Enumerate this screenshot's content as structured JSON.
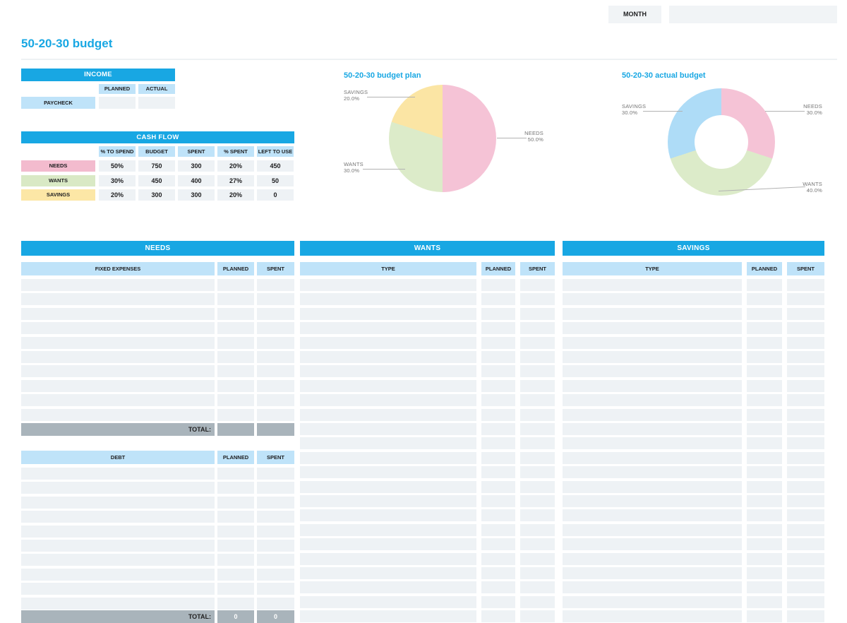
{
  "page": {
    "title": "50-20-30 budget",
    "accent_color": "#18a7e3"
  },
  "month": {
    "label": "MONTH",
    "value": ""
  },
  "income": {
    "header": "INCOME",
    "columns": [
      "PLANNED",
      "ACTUAL"
    ],
    "rows": [
      {
        "label": "PAYCHECK",
        "planned": "",
        "actual": ""
      }
    ]
  },
  "cash_flow": {
    "header": "CASH FLOW",
    "columns": [
      "% TO SPEND",
      "BUDGET",
      "SPENT",
      "% SPENT",
      "LEFT TO USE"
    ],
    "rows": [
      {
        "label": "NEEDS",
        "color": "#f3bbce",
        "values": [
          "50%",
          "750",
          "300",
          "20%",
          "450"
        ]
      },
      {
        "label": "WANTS",
        "color": "#d9e9c5",
        "values": [
          "30%",
          "450",
          "400",
          "27%",
          "50"
        ]
      },
      {
        "label": "SAVINGS",
        "color": "#fce7a6",
        "values": [
          "20%",
          "300",
          "300",
          "20%",
          "0"
        ]
      }
    ]
  },
  "chart_data": [
    {
      "type": "pie",
      "title": "50-20-30 budget plan",
      "labels": [
        "NEEDS",
        "WANTS",
        "SAVINGS"
      ],
      "values": [
        50.0,
        30.0,
        20.0
      ],
      "colors": [
        "#f5c3d6",
        "#dcebc9",
        "#fbe5a4"
      ],
      "legend": "none",
      "callouts": [
        {
          "name": "NEEDS",
          "pct": "50.0%"
        },
        {
          "name": "WANTS",
          "pct": "30.0%"
        },
        {
          "name": "SAVINGS",
          "pct": "20.0%"
        }
      ]
    },
    {
      "type": "donut",
      "title": "50-20-30 actual budget",
      "labels": [
        "NEEDS",
        "WANTS",
        "SAVINGS"
      ],
      "values": [
        30.0,
        40.0,
        30.0
      ],
      "colors": [
        "#f5c3d6",
        "#dcebc9",
        "#aedcf7"
      ],
      "legend": "none",
      "callouts": [
        {
          "name": "NEEDS",
          "pct": "30.0%"
        },
        {
          "name": "WANTS",
          "pct": "40.0%"
        },
        {
          "name": "SAVINGS",
          "pct": "30.0%"
        }
      ]
    }
  ],
  "sections": [
    {
      "id": "needs",
      "header": "NEEDS",
      "tables": [
        {
          "name_header": "FIXED EXPENSES",
          "planned_header": "PLANNED",
          "spent_header": "SPENT",
          "empty_rows": 10,
          "total": {
            "label": "TOTAL:",
            "planned": "",
            "spent": ""
          }
        },
        {
          "name_header": "DEBT",
          "planned_header": "PLANNED",
          "spent_header": "SPENT",
          "empty_rows": 10,
          "total": {
            "label": "TOTAL:",
            "planned": "0",
            "spent": "0"
          }
        }
      ]
    },
    {
      "id": "wants",
      "header": "WANTS",
      "tables": [
        {
          "name_header": "TYPE",
          "planned_header": "PLANNED",
          "spent_header": "SPENT",
          "empty_rows": 24,
          "total": null
        }
      ]
    },
    {
      "id": "savings",
      "header": "SAVINGS",
      "tables": [
        {
          "name_header": "TYPE",
          "planned_header": "PLANNED",
          "spent_header": "SPENT",
          "empty_rows": 24,
          "total": null
        }
      ]
    }
  ]
}
